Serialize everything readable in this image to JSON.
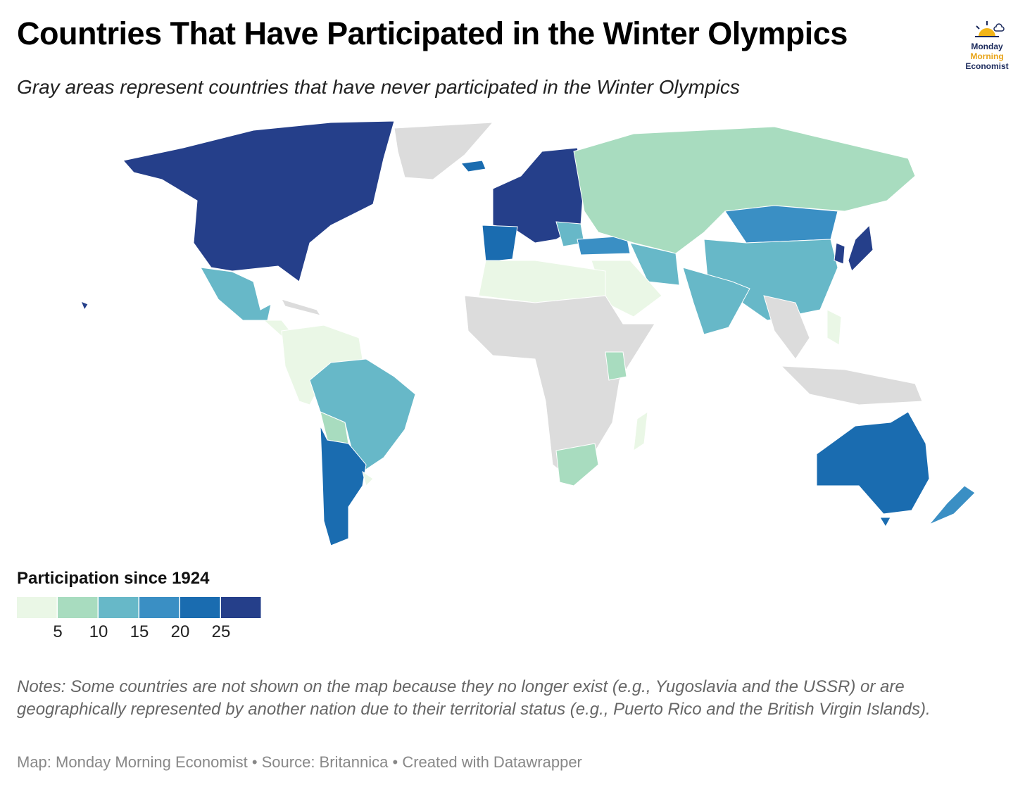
{
  "header": {
    "title": "Countries That Have Participated in the Winter Olympics",
    "subtitle": "Gray areas represent countries that have never participated in the Winter Olympics",
    "logo": [
      "Monday",
      "Morning",
      "Economist"
    ]
  },
  "legend": {
    "title": "Participation since 1924",
    "colors": [
      "#eaf7e6",
      "#a8dcbf",
      "#67b8c8",
      "#3a8fc4",
      "#1a6cb0",
      "#253f8a"
    ],
    "ticks": [
      5,
      10,
      15,
      20,
      25
    ]
  },
  "notes": "Notes: Some countries are not shown on the map because they no longer exist (e.g., Yugoslavia and the USSR) or are geographically represented by another nation due to their territorial status (e.g., Puerto Rico and the British Virgin Islands).",
  "credit": "Map: Monday Morning Economist • Source: Britannica • Created with Datawrapper"
}
